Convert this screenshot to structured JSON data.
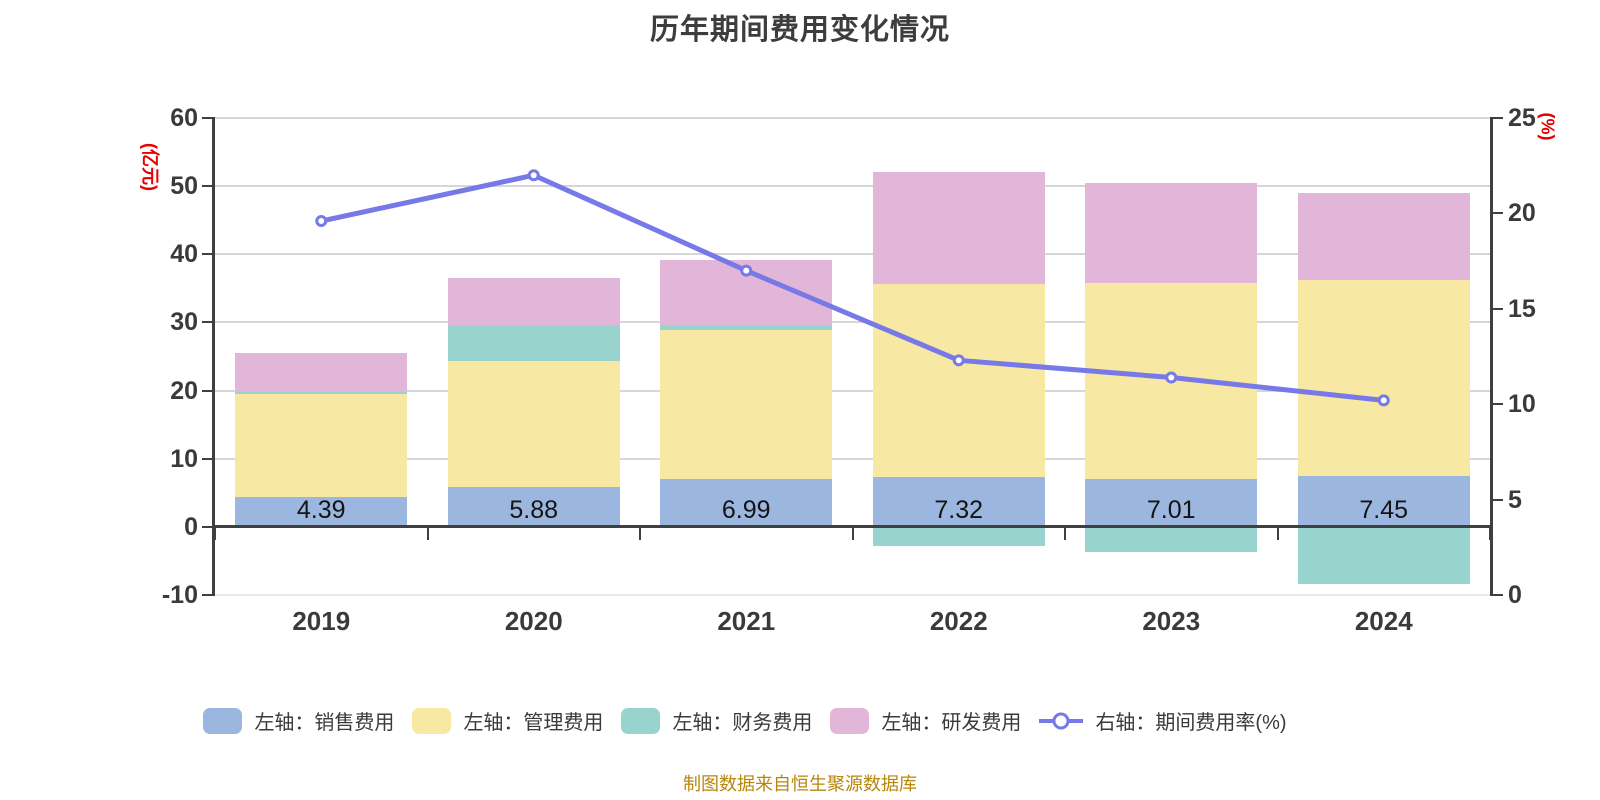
{
  "title": "历年期间费用变化情况",
  "footer": "制图数据来自恒生聚源数据库",
  "colors": {
    "title": "#3d3d3d",
    "axis_text": "#3a3a3a",
    "axis_line": "#3f3f3f",
    "grid": "#d6d6d6",
    "grid_bottom": "#e9e9e9",
    "axis_unit_red": "#e80000",
    "footer_orange": "#b8860b",
    "bar_label_text": "#141414"
  },
  "chart_data": {
    "type": "bar",
    "subtype": "stacked-bar-with-line",
    "categories": [
      "2019",
      "2020",
      "2021",
      "2022",
      "2023",
      "2024"
    ],
    "series": [
      {
        "key": "sales",
        "name": "左轴：销售费用",
        "type": "bar",
        "axis": "left",
        "color": "#9bb7e0",
        "values": [
          4.39,
          5.88,
          6.99,
          7.32,
          7.01,
          7.45
        ]
      },
      {
        "key": "admin",
        "name": "左轴：管理费用",
        "type": "bar",
        "axis": "left",
        "color": "#f7e8a4",
        "values": [
          15.1,
          18.4,
          21.9,
          28.3,
          28.8,
          28.8
        ]
      },
      {
        "key": "finance",
        "name": "左轴：财务费用",
        "type": "bar",
        "axis": "left",
        "color": "#98d4cd",
        "values": [
          0.3,
          5.3,
          0.8,
          -2.8,
          -3.7,
          -8.4
        ]
      },
      {
        "key": "rd",
        "name": "左轴：研发费用",
        "type": "bar",
        "axis": "left",
        "color": "#e2b6d8",
        "values": [
          5.7,
          6.9,
          9.5,
          16.5,
          14.6,
          12.7
        ]
      },
      {
        "key": "ratio",
        "name": "右轴：期间费用率(%)",
        "type": "line",
        "axis": "right",
        "color": "#7679e6",
        "values": [
          19.6,
          22.0,
          17.0,
          12.3,
          11.4,
          10.2
        ]
      }
    ],
    "bar_value_labels": [
      "4.39",
      "5.88",
      "6.99",
      "7.32",
      "7.01",
      "7.45"
    ],
    "left_axis": {
      "unit": "(亿元)",
      "min": -10,
      "max": 60,
      "ticks": [
        60,
        50,
        40,
        30,
        20,
        10,
        0,
        -10
      ]
    },
    "right_axis": {
      "unit": "(%)",
      "min": 0,
      "max": 25,
      "ticks": [
        25,
        20,
        15,
        10,
        5,
        0
      ]
    },
    "grid": "horizontal-only",
    "legend_position": "bottom"
  }
}
